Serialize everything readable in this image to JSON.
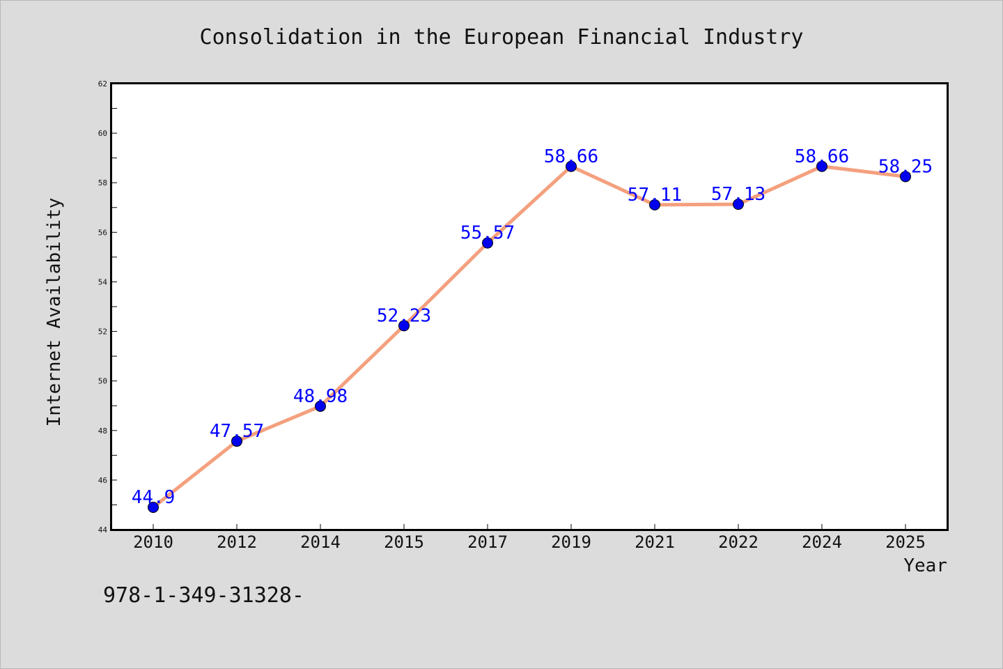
{
  "chart_data": {
    "type": "line",
    "title": "Consolidation in the European Financial Industry",
    "xlabel": "Year",
    "ylabel": "Internet Availability",
    "categories": [
      "2010",
      "2012",
      "2014",
      "2015",
      "2017",
      "2019",
      "2021",
      "2022",
      "2024",
      "2025"
    ],
    "series": [
      {
        "values": [
          44.9,
          47.57,
          48.98,
          52.23,
          55.57,
          58.66,
          57.11,
          57.13,
          58.66,
          58.25
        ],
        "data_labels": [
          "44.9",
          "47.57",
          "48.98",
          "52.23",
          "55.57",
          "58.66",
          "57.11",
          "57.13",
          "58.66",
          "58.25"
        ],
        "line_color": "#f4a07e",
        "marker_color": "#0000ee"
      }
    ],
    "ylim": [
      44,
      62
    ],
    "yticks": [
      44,
      46,
      48,
      50,
      52,
      54,
      56,
      58,
      60,
      62
    ],
    "grid": false,
    "footnote": "978-1-349-31328-"
  },
  "colors": {
    "background": "#dcdcdc",
    "plot_background": "#ffffff",
    "label_color": "#0000ff"
  }
}
